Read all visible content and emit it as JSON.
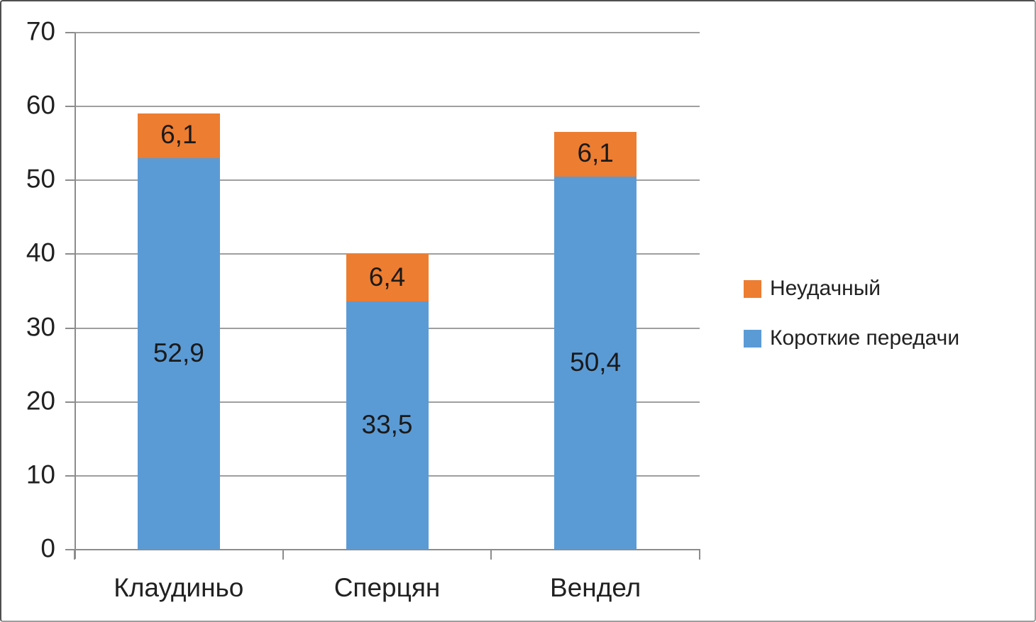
{
  "chart_data": {
    "type": "bar",
    "stacked": true,
    "title": "",
    "xlabel": "",
    "ylabel": "",
    "categories": [
      "Клаудиньо",
      "Сперцян",
      "Вендел"
    ],
    "series": [
      {
        "name": "Короткие передачи",
        "color": "#5B9BD5",
        "values": [
          52.9,
          33.5,
          50.4
        ],
        "labels": [
          "52,9",
          "33,5",
          "50,4"
        ]
      },
      {
        "name": "Неудачный",
        "color": "#ED7D31",
        "values": [
          6.1,
          6.4,
          6.1
        ],
        "labels": [
          "6,1",
          "6,4",
          "6,1"
        ]
      }
    ],
    "ylim": [
      0,
      70
    ],
    "y_tick_step": 10,
    "y_tick_labels": [
      "0",
      "10",
      "20",
      "30",
      "40",
      "50",
      "60",
      "70"
    ],
    "grid": true,
    "legend_position": "right",
    "legend": [
      {
        "label": "Неудачный",
        "color": "#ED7D31"
      },
      {
        "label": "Короткие передачи",
        "color": "#5B9BD5"
      }
    ]
  }
}
